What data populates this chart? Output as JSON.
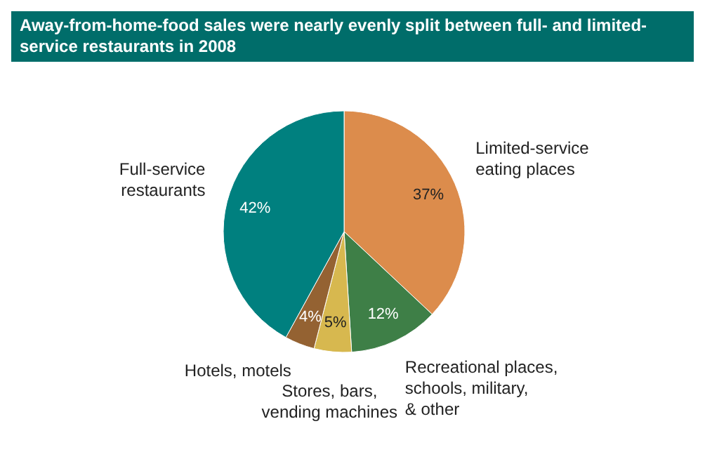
{
  "chart_data": {
    "type": "pie",
    "title": "Away-from-home-food sales were nearly evenly split between full- and limited-service restaurants in 2008",
    "categories": [
      "Limited-service eating places",
      "Recreational places, schools, military, & other",
      "Stores, bars, vending machines",
      "Hotels, motels",
      "Full-service restaurants"
    ],
    "values": [
      37,
      12,
      5,
      4,
      42
    ],
    "colors": [
      "#dc8c4c",
      "#3e7f47",
      "#d7b84f",
      "#946232",
      "#00807f"
    ],
    "value_labels": [
      "37%",
      "12%",
      "5%",
      "4%",
      "42%"
    ],
    "data_labels": true
  }
}
